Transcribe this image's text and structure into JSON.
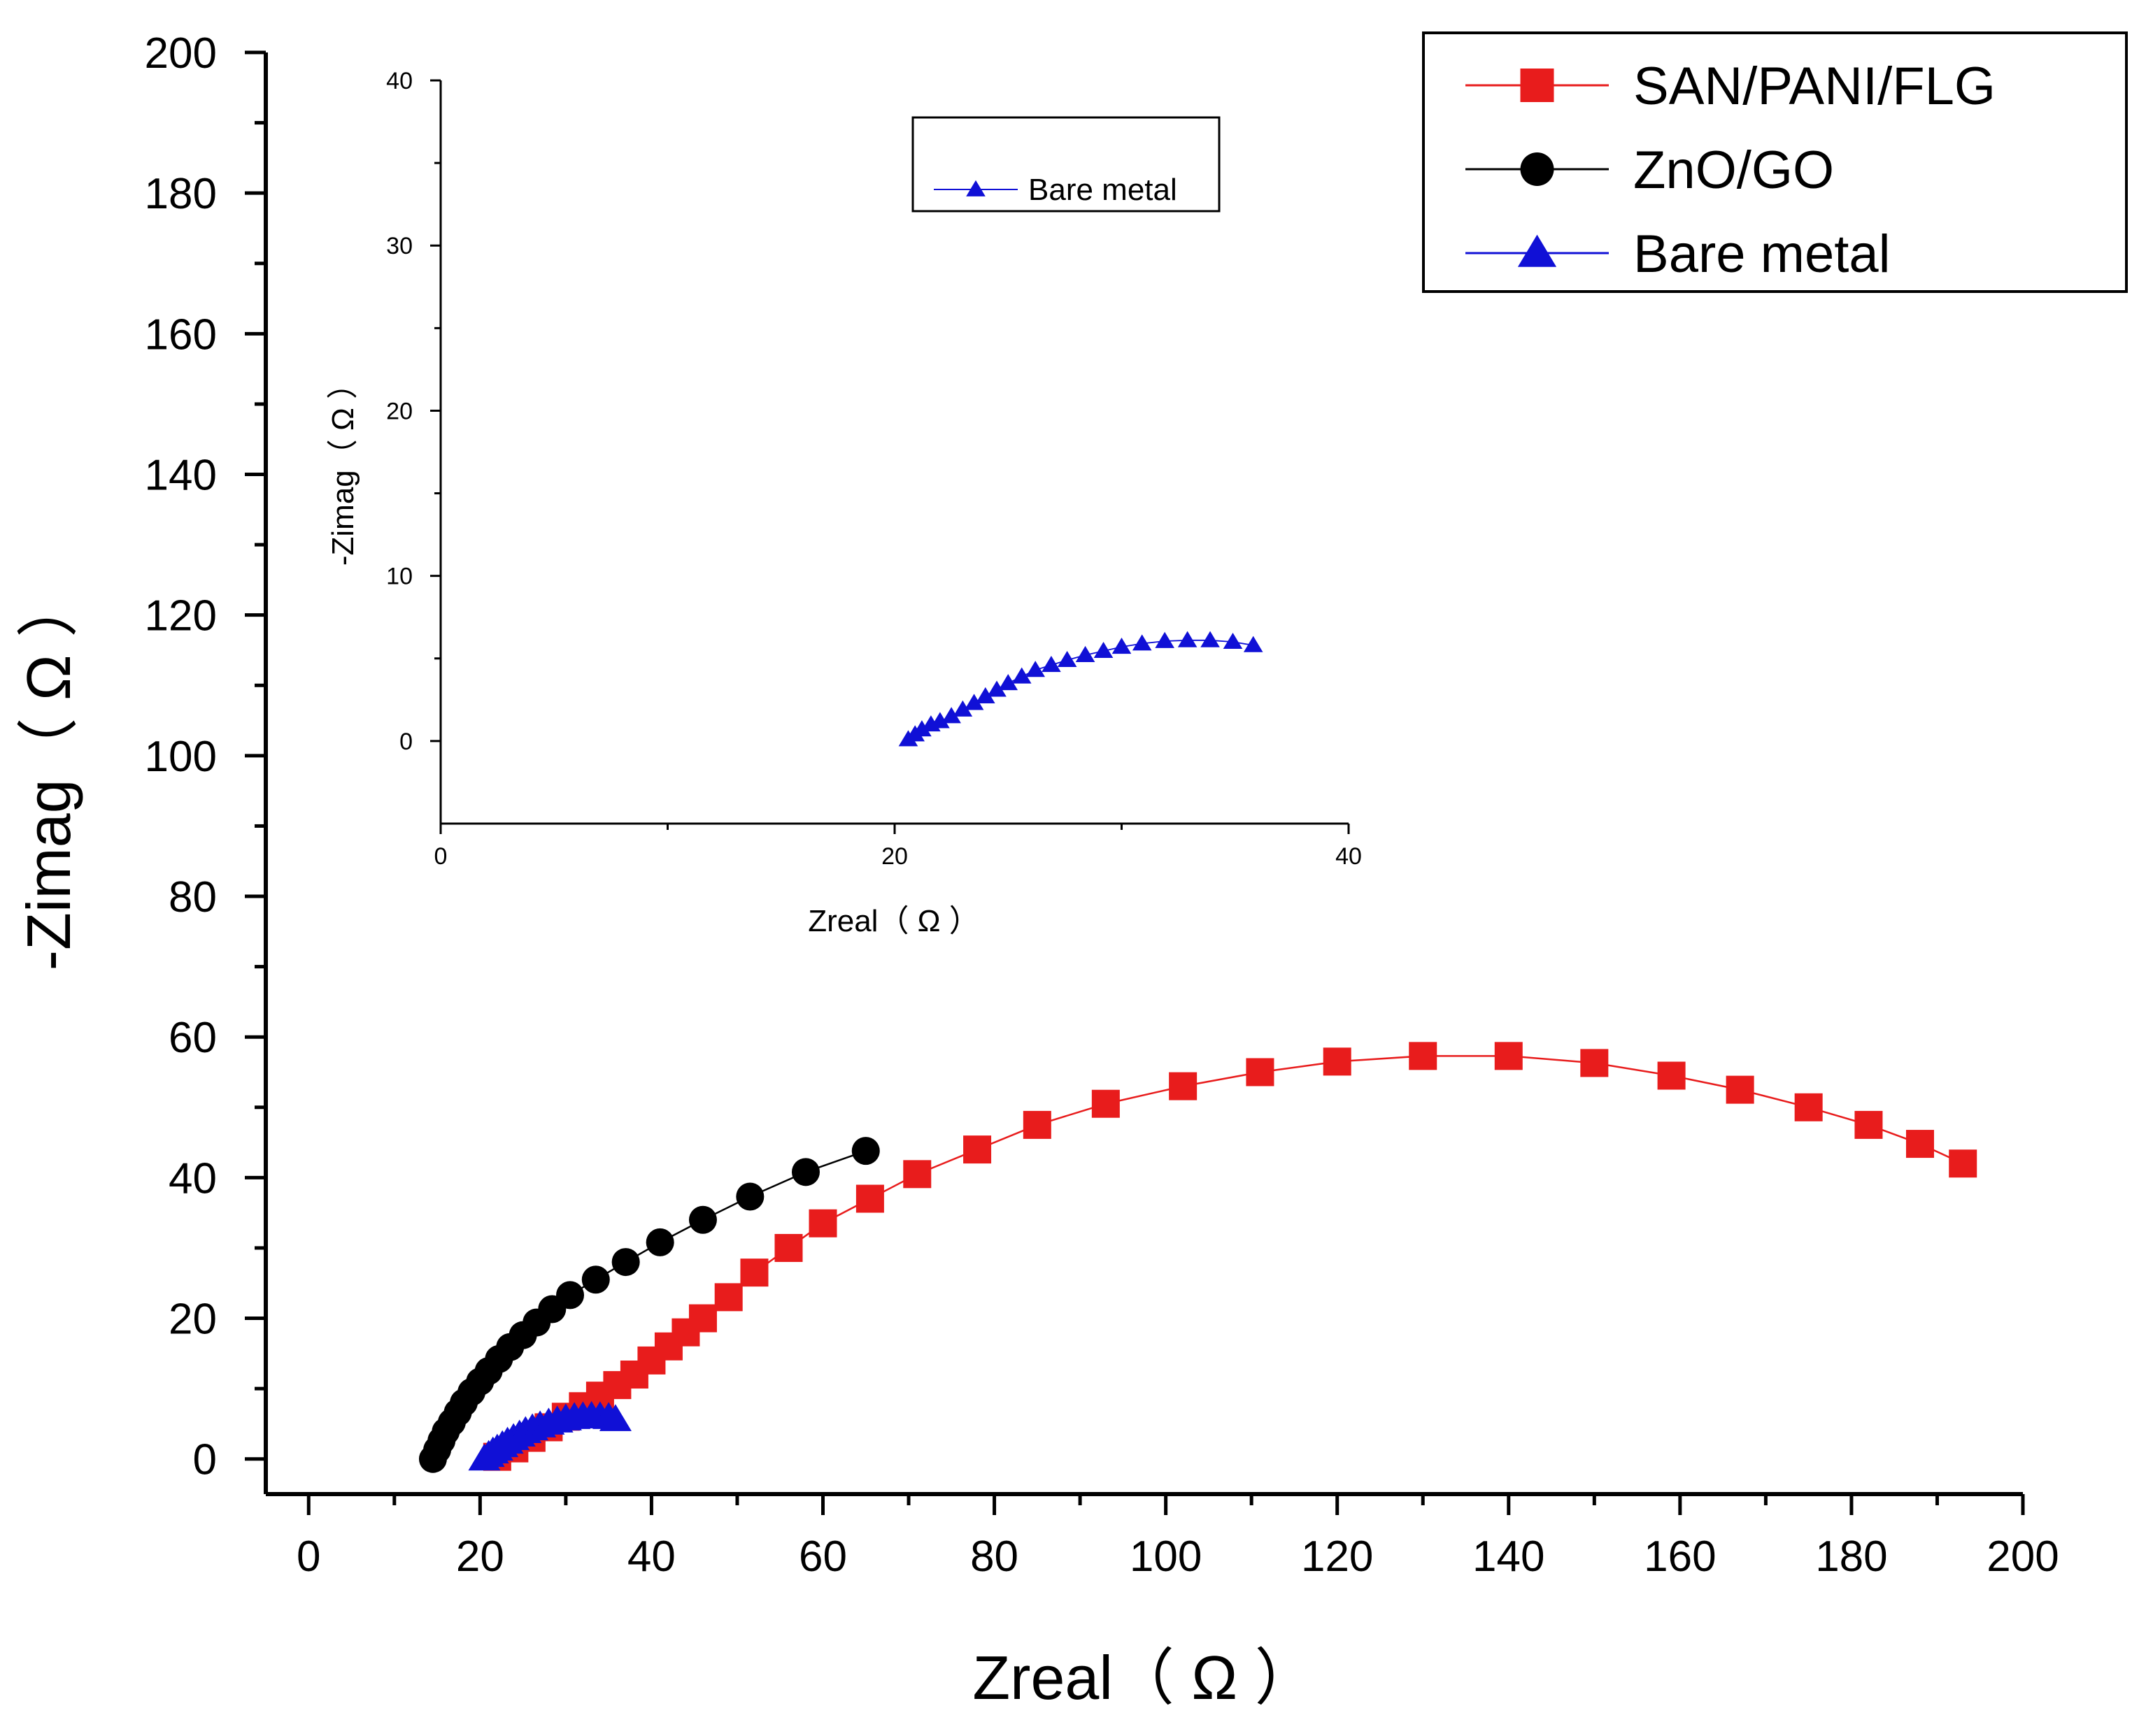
{
  "chart_data": [
    {
      "name": "main",
      "type": "scatter",
      "xlabel": "Zreal（ Ω ）",
      "ylabel": "-Zimag（ Ω ）",
      "xlim": [
        -5,
        200
      ],
      "ylim": [
        -5,
        200
      ],
      "xticks": [
        0,
        20,
        40,
        60,
        80,
        100,
        120,
        140,
        160,
        180,
        200
      ],
      "yticks": [
        0,
        20,
        40,
        60,
        80,
        100,
        120,
        140,
        160,
        180,
        200
      ],
      "legend_position": "top-right",
      "series": [
        {
          "name": "SAN/PANI/FLG",
          "color": "#e81c1c",
          "marker": "square",
          "points": [
            [
              22,
              0.3
            ],
            [
              24,
              1.5
            ],
            [
              26,
              3
            ],
            [
              28,
              4.5
            ],
            [
              30,
              6
            ],
            [
              32,
              7.5
            ],
            [
              34,
              9
            ],
            [
              36,
              10.5
            ],
            [
              38,
              12
            ],
            [
              40,
              14
            ],
            [
              42,
              16
            ],
            [
              44,
              18
            ],
            [
              46,
              20
            ],
            [
              49,
              23
            ],
            [
              52,
              26.5
            ],
            [
              56,
              30
            ],
            [
              60,
              33.5
            ],
            [
              65.5,
              37
            ],
            [
              71,
              40.5
            ],
            [
              78,
              44
            ],
            [
              85,
              47.5
            ],
            [
              93,
              50.5
            ],
            [
              102,
              53
            ],
            [
              111,
              55
            ],
            [
              120,
              56.5
            ],
            [
              130,
              57.3
            ],
            [
              140,
              57.3
            ],
            [
              150,
              56.3
            ],
            [
              159,
              54.5
            ],
            [
              167,
              52.5
            ],
            [
              175,
              50
            ],
            [
              182,
              47.5
            ],
            [
              188,
              44.8
            ],
            [
              193,
              42
            ]
          ]
        },
        {
          "name": "ZnO/GO",
          "color": "#000000",
          "marker": "circle",
          "points": [
            [
              14.5,
              0
            ],
            [
              15,
              1.3
            ],
            [
              15.5,
              2.6
            ],
            [
              16,
              3.9
            ],
            [
              16.7,
              5.2
            ],
            [
              17.4,
              6.6
            ],
            [
              18.1,
              8
            ],
            [
              19,
              9.5
            ],
            [
              20,
              11
            ],
            [
              21,
              12.5
            ],
            [
              22.2,
              14.2
            ],
            [
              23.5,
              15.9
            ],
            [
              25,
              17.6
            ],
            [
              26.6,
              19.4
            ],
            [
              28.4,
              21.3
            ],
            [
              30.5,
              23.3
            ],
            [
              33.5,
              25.5
            ],
            [
              37,
              28
            ],
            [
              41,
              30.8
            ],
            [
              46,
              34
            ],
            [
              51.5,
              37.3
            ],
            [
              58,
              40.8
            ],
            [
              65,
              43.8
            ]
          ]
        },
        {
          "name": "Bare metal",
          "color": "#1010d6",
          "marker": "triangle",
          "points": [
            [
              20.5,
              0
            ],
            [
              21,
              0.5
            ],
            [
              21.5,
              1
            ],
            [
              22,
              1.4
            ],
            [
              22.6,
              1.9
            ],
            [
              23.2,
              2.4
            ],
            [
              23.9,
              2.9
            ],
            [
              24.6,
              3.4
            ],
            [
              25.3,
              3.9
            ],
            [
              26.1,
              4.3
            ],
            [
              27,
              4.7
            ],
            [
              28,
              5.1
            ],
            [
              29,
              5.4
            ],
            [
              30,
              5.7
            ],
            [
              31,
              5.9
            ],
            [
              32,
              6
            ],
            [
              33,
              6.05
            ],
            [
              34,
              6
            ],
            [
              35,
              5.9
            ],
            [
              35.8,
              5.6
            ]
          ]
        }
      ]
    },
    {
      "name": "inset",
      "type": "scatter",
      "xlabel": "Zreal（ Ω ）",
      "ylabel": "-Zimag（ Ω ）",
      "xlim": [
        0,
        40
      ],
      "ylim": [
        -5,
        40
      ],
      "xticks": [
        0,
        20,
        40
      ],
      "yticks": [
        0,
        10,
        20,
        30,
        40
      ],
      "legend_position": "top-right",
      "series": [
        {
          "name": "Bare metal",
          "color": "#1010d6",
          "marker": "triangle",
          "points": [
            [
              20.6,
              0.1
            ],
            [
              20.9,
              0.4
            ],
            [
              21.2,
              0.7
            ],
            [
              21.6,
              1
            ],
            [
              22,
              1.2
            ],
            [
              22.5,
              1.5
            ],
            [
              23,
              1.9
            ],
            [
              23.5,
              2.3
            ],
            [
              24,
              2.7
            ],
            [
              24.5,
              3.1
            ],
            [
              25,
              3.5
            ],
            [
              25.6,
              3.9
            ],
            [
              26.2,
              4.3
            ],
            [
              26.9,
              4.6
            ],
            [
              27.6,
              4.9
            ],
            [
              28.4,
              5.2
            ],
            [
              29.2,
              5.45
            ],
            [
              30,
              5.7
            ],
            [
              30.9,
              5.9
            ],
            [
              31.9,
              6.05
            ],
            [
              32.9,
              6.1
            ],
            [
              33.9,
              6.1
            ],
            [
              34.9,
              6
            ],
            [
              35.8,
              5.8
            ]
          ]
        }
      ]
    }
  ]
}
